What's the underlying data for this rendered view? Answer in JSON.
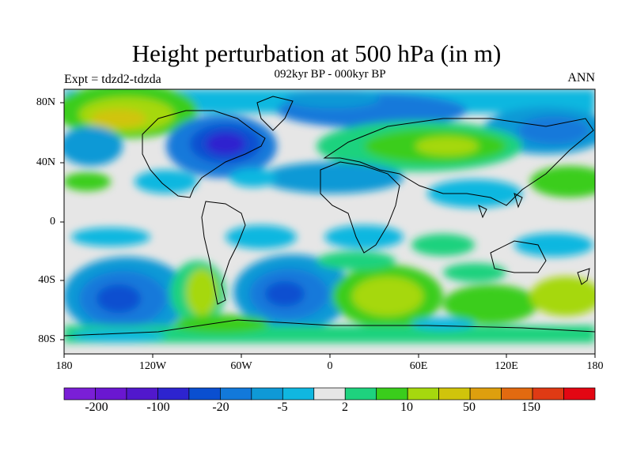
{
  "title": "Height perturbation at 500 hPa (in m)",
  "subtitle": "092kyr BP - 000kyr BP",
  "expt_label": "Expt = tdzd2-tdzda",
  "season_label": "ANN",
  "y_axis_labels": [
    "80N",
    "40N",
    "0",
    "40S",
    "80S"
  ],
  "x_axis_labels": [
    "180",
    "120W",
    "60W",
    "0",
    "60E",
    "120E",
    "180"
  ],
  "colorbar": {
    "colors": [
      "#7a1fd6",
      "#6a17d1",
      "#5118cc",
      "#2d24cf",
      "#0a4fd0",
      "#1279da",
      "#0f99d6",
      "#10b7e0",
      "#e6e6e6",
      "#1ed27e",
      "#3acd1c",
      "#a6d80e",
      "#d0c40b",
      "#de9f0e",
      "#e26a10",
      "#df3a14",
      "#e30713"
    ],
    "labels": [
      "-200",
      "-100",
      "-20",
      "-5",
      "2",
      "10",
      "50",
      "150"
    ]
  }
}
